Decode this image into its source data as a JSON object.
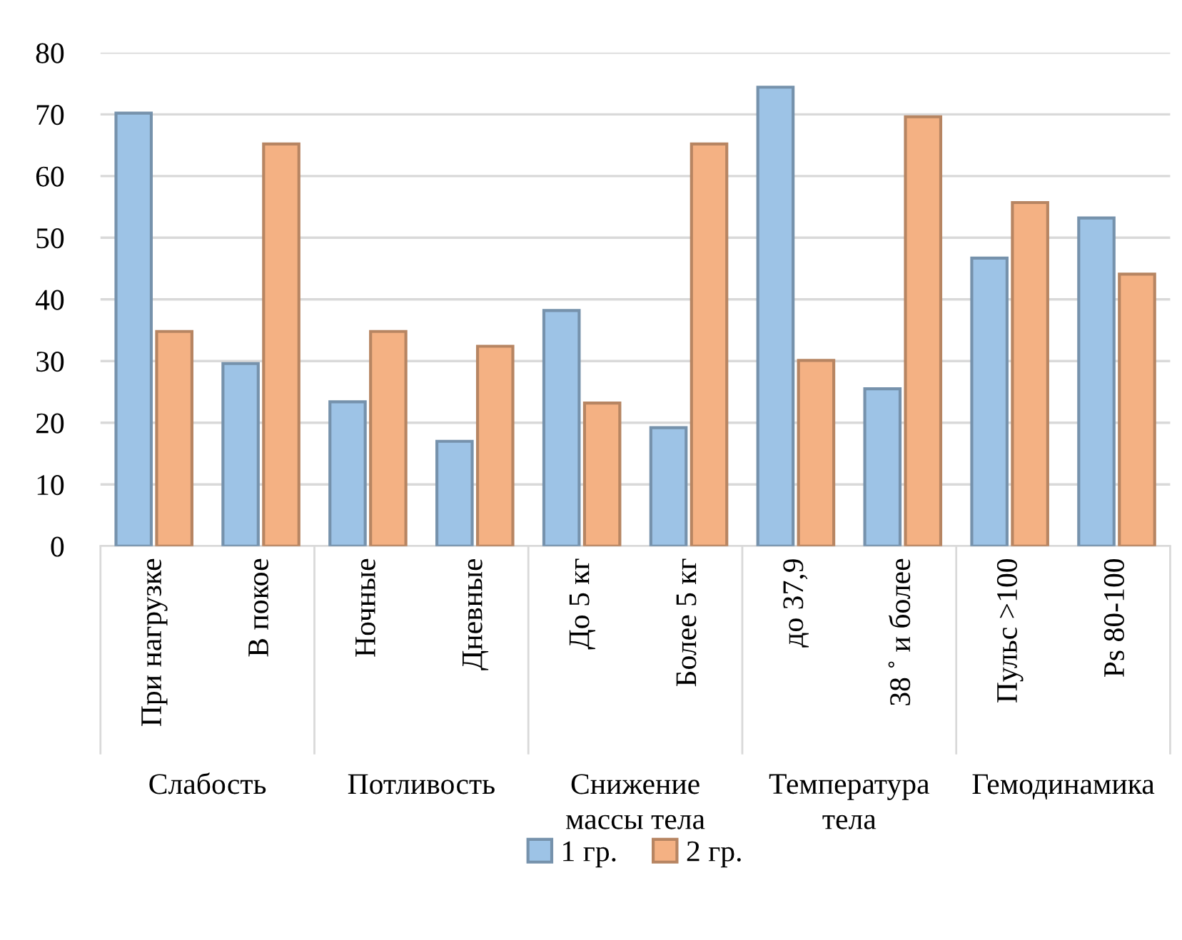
{
  "chart_data": {
    "type": "bar",
    "categories": [
      "При нагрузке",
      "В покое",
      "Ночные",
      "Дневные",
      "До 5 кг",
      "Более 5 кг",
      "до 37,9",
      "38 ˚ и более",
      "Пульс >100",
      "Ps 80-100"
    ],
    "series": [
      {
        "name": "1 гр.",
        "color": "#9dc3e6",
        "values": [
          70.2,
          29.6,
          23.4,
          17,
          38.2,
          19.2,
          74.4,
          25.5,
          46.7,
          53.2
        ]
      },
      {
        "name": "2 гр.",
        "color": "#f4b183",
        "values": [
          34.8,
          65.2,
          34.8,
          32.4,
          23.2,
          65.2,
          30.1,
          69.6,
          55.7,
          44.1
        ]
      }
    ],
    "annotations": [
      "Слабость",
      "Потливость",
      "Снижение\nмассы тела",
      "Температура\nтела",
      "Гемодинамика"
    ],
    "ylim": [
      0,
      80
    ],
    "yticks": [
      0,
      10,
      20,
      30,
      40,
      50,
      60,
      70,
      80
    ],
    "grid": "y",
    "legend": "bottom"
  }
}
